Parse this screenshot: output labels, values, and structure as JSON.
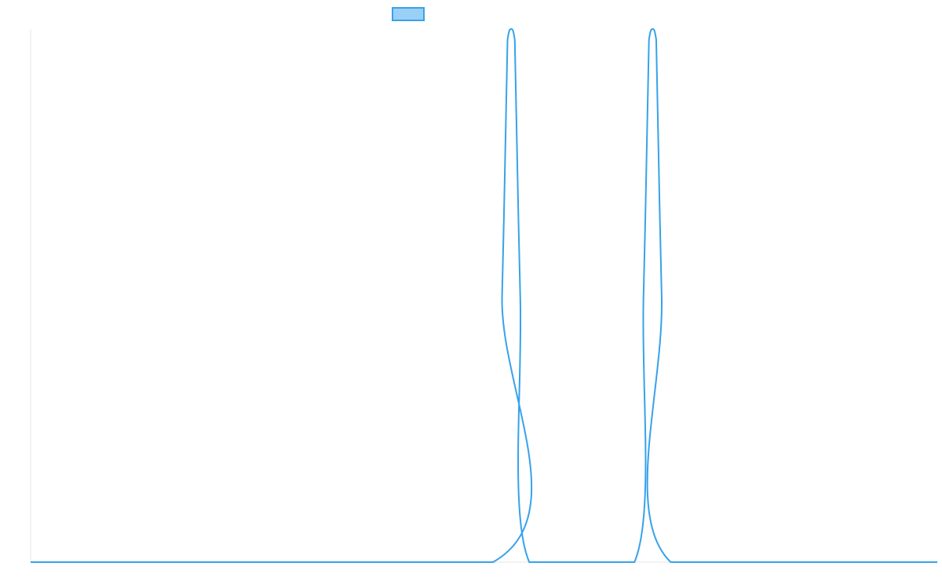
{
  "chart_data": {
    "type": "line",
    "title": "",
    "xlabel": "",
    "ylabel": "",
    "legend": {
      "placement": "top-center",
      "show_label": false
    },
    "grid": false,
    "xlim": [
      0,
      1000
    ],
    "ylim": [
      0,
      1
    ],
    "series": [
      {
        "color": "#36a2eb",
        "fill_color": "#9ad0f5",
        "x": [
          0,
          510,
          520,
          526,
          530,
          534,
          540,
          550,
          666,
          676,
          682,
          686,
          690,
          696,
          706,
          1000
        ],
        "y": [
          0,
          0,
          0.5,
          0.98,
          1.0,
          0.98,
          0.5,
          0,
          0,
          0.5,
          0.98,
          1.0,
          0.98,
          0.5,
          0,
          0
        ]
      }
    ]
  }
}
